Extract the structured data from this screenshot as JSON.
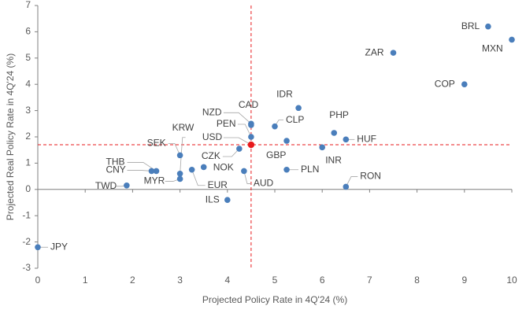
{
  "chart_data": {
    "type": "scatter",
    "title": "",
    "xlabel": "Projected Policy Rate in 4Q'24 (%)",
    "ylabel": "Projected Real Policy Rate in 4Q'24 (%)",
    "xlim": [
      0,
      10
    ],
    "ylim": [
      -3,
      7
    ],
    "xticks": [
      0,
      1,
      2,
      3,
      4,
      5,
      6,
      7,
      8,
      9,
      10
    ],
    "yticks": [
      -3,
      -2,
      -1,
      0,
      1,
      2,
      3,
      4,
      5,
      6,
      7
    ],
    "grid": false,
    "point_color": "#4a7ebb",
    "highlight_color": "#e8191b",
    "reference_line_color": "#e8191b",
    "reference_lines": {
      "x": 4.5,
      "y": 1.7
    },
    "points": [
      {
        "label": "BRL",
        "x": 9.5,
        "y": 6.2
      },
      {
        "label": "MXN",
        "x": 10.0,
        "y": 5.7
      },
      {
        "label": "ZAR",
        "x": 7.5,
        "y": 5.2
      },
      {
        "label": "COP",
        "x": 9.0,
        "y": 4.0
      },
      {
        "label": "IDR",
        "x": 5.5,
        "y": 3.1
      },
      {
        "label": "NZD",
        "x": 4.5,
        "y": 2.5
      },
      {
        "label": "CAD",
        "x": 4.5,
        "y": 2.45
      },
      {
        "label": "PEN",
        "x": 4.5,
        "y": 2.0
      },
      {
        "label": "CLP",
        "x": 5.0,
        "y": 2.4
      },
      {
        "label": "PHP",
        "x": 6.25,
        "y": 2.15
      },
      {
        "label": "HUF",
        "x": 6.5,
        "y": 1.9
      },
      {
        "label": "USD",
        "x": 4.5,
        "y": 1.7,
        "highlight": true
      },
      {
        "label": "GBP",
        "x": 5.25,
        "y": 1.85
      },
      {
        "label": "INR",
        "x": 6.0,
        "y": 1.6
      },
      {
        "label": "CZK",
        "x": 4.25,
        "y": 1.55
      },
      {
        "label": "SEK",
        "x": 3.0,
        "y": 1.3
      },
      {
        "label": "KRW",
        "x": 3.0,
        "y": 0.6
      },
      {
        "label": "THB",
        "x": 2.5,
        "y": 0.7
      },
      {
        "label": "CNY",
        "x": 2.4,
        "y": 0.7
      },
      {
        "label": "MYR",
        "x": 3.0,
        "y": 0.4
      },
      {
        "label": "EUR",
        "x": 3.25,
        "y": 0.75
      },
      {
        "label": "NOK",
        "x": 3.5,
        "y": 0.85
      },
      {
        "label": "AUD",
        "x": 4.35,
        "y": 0.7
      },
      {
        "label": "PLN",
        "x": 5.25,
        "y": 0.75
      },
      {
        "label": "RON",
        "x": 6.5,
        "y": 0.1
      },
      {
        "label": "TWD",
        "x": 1.875,
        "y": 0.15
      },
      {
        "label": "ILS",
        "x": 4.0,
        "y": -0.4
      },
      {
        "label": "JPY",
        "x": 0.0,
        "y": -2.2
      }
    ]
  }
}
